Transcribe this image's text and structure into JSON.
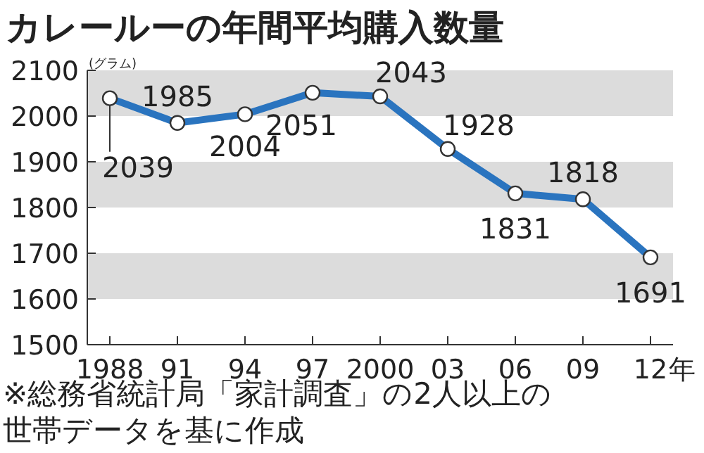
{
  "chart_data": {
    "type": "line",
    "title": "カレールーの年間平均購入数量",
    "x": [
      1988,
      1991,
      1994,
      1997,
      2000,
      2003,
      2006,
      2009,
      2012
    ],
    "series": [
      {
        "color": "#2a74bf",
        "values": [
          2039,
          1985,
          2004,
          2051,
          2043,
          1928,
          1831,
          1818,
          1691
        ]
      }
    ],
    "xlim": [
      1987,
      2013
    ],
    "xticks": [
      {
        "value": 1988,
        "label": "1988"
      },
      {
        "value": 1991,
        "label": "91"
      },
      {
        "value": 1994,
        "label": "94"
      },
      {
        "value": 1997,
        "label": "97"
      },
      {
        "value": 2000,
        "label": "2000"
      },
      {
        "value": 2003,
        "label": "03"
      },
      {
        "value": 2006,
        "label": "06"
      },
      {
        "value": 2009,
        "label": "09"
      },
      {
        "value": 2012,
        "label": "12"
      }
    ],
    "xlabel": "年",
    "bands": [
      {
        "axis": "y",
        "from": 2000,
        "to": 2100,
        "color": "#dcdcdc"
      },
      {
        "axis": "y",
        "from": 1800,
        "to": 1900,
        "color": "#dcdcdc"
      },
      {
        "axis": "y",
        "from": 1600,
        "to": 1700,
        "color": "#dcdcdc"
      }
    ],
    "ylim": [
      1500,
      2100
    ],
    "yticks": [
      1500,
      1600,
      1700,
      1800,
      1900,
      2000,
      2100
    ],
    "marker": "circle",
    "line_style": "solid",
    "data_labels": true,
    "annotations": [
      "(グラム)",
      "※総務省統計局「家計調査」の2人以上の世帯データを基に作成"
    ]
  }
}
